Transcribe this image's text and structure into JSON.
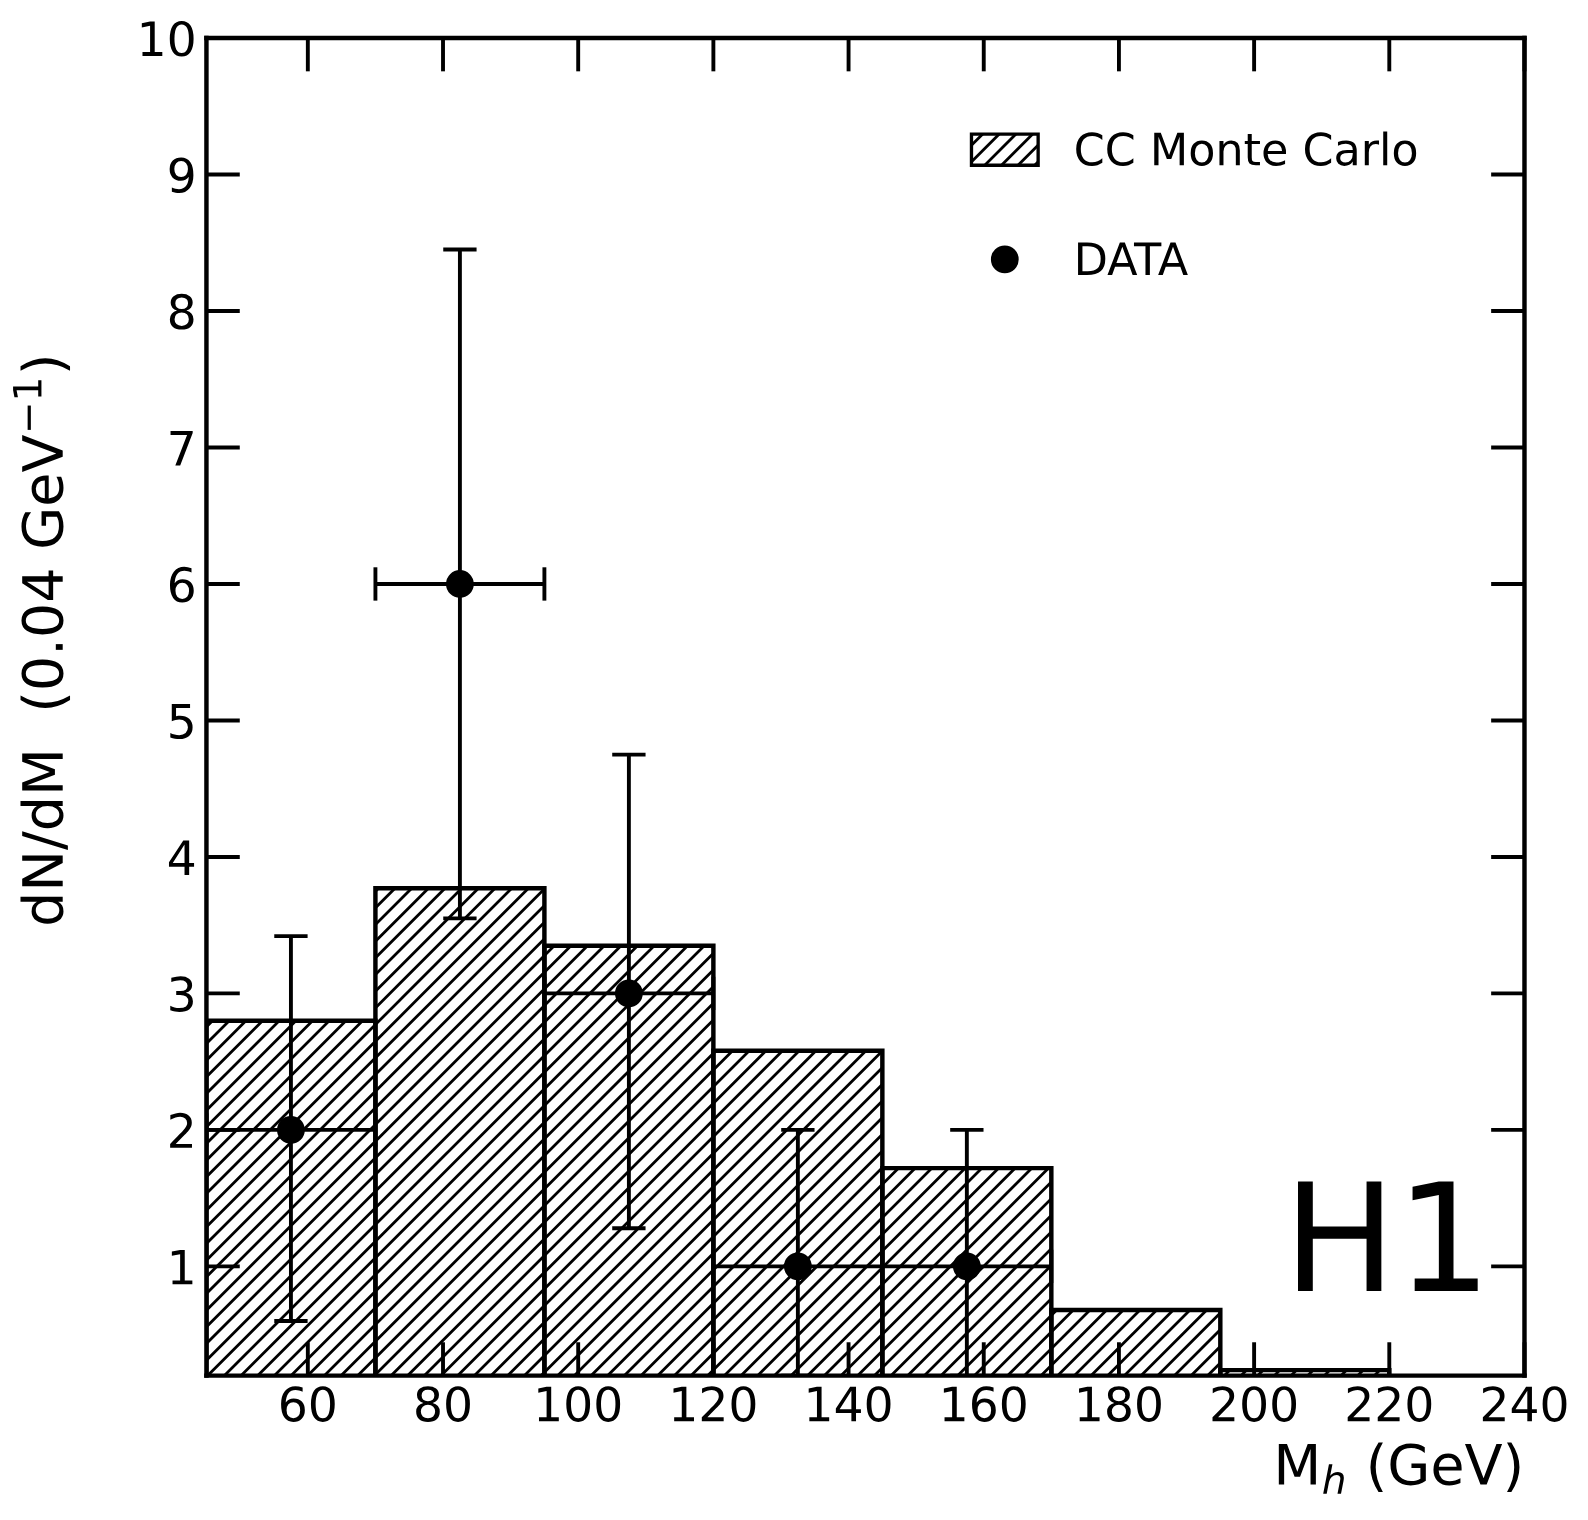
{
  "chart_data": {
    "type": "histogram",
    "xlabel": "M$_{h}$ (GeV)",
    "ylabel": "dN/dM  (0.04 GeV$^{−1}$)",
    "xlim": [
      45,
      240
    ],
    "xticks": [
      60,
      80,
      100,
      120,
      140,
      160,
      180,
      200,
      220,
      240
    ],
    "ylim": [
      0.2,
      10
    ],
    "yticks": [
      1,
      2,
      3,
      4,
      5,
      6,
      7,
      8,
      9,
      10
    ],
    "legend": "top right",
    "grid": false,
    "annotations": [
      "H1"
    ],
    "series": [
      {
        "name": "CC Monte Carlo",
        "color": "#000000",
        "bins": [
          45,
          70,
          95,
          120,
          145,
          170,
          195,
          220
        ],
        "values": [
          2.8,
          3.77,
          3.35,
          2.58,
          1.72,
          0.68,
          0.24
        ]
      },
      {
        "type": "scatter",
        "name": "DATA",
        "color": "#000000",
        "marker": "circle",
        "x": [
          57.5,
          82.5,
          107.5,
          132.5,
          157.5
        ],
        "values": [
          2,
          6,
          3,
          1,
          1
        ],
        "errors": [
          [
            0.6,
            3.42
          ],
          [
            3.55,
            8.45
          ],
          [
            1.28,
            4.75
          ],
          [
            0.2,
            2.0
          ],
          [
            0.2,
            2.0
          ]
        ],
        "xerrors": [
          12.5,
          12.5,
          12.5,
          12.5,
          12.5
        ]
      }
    ]
  }
}
